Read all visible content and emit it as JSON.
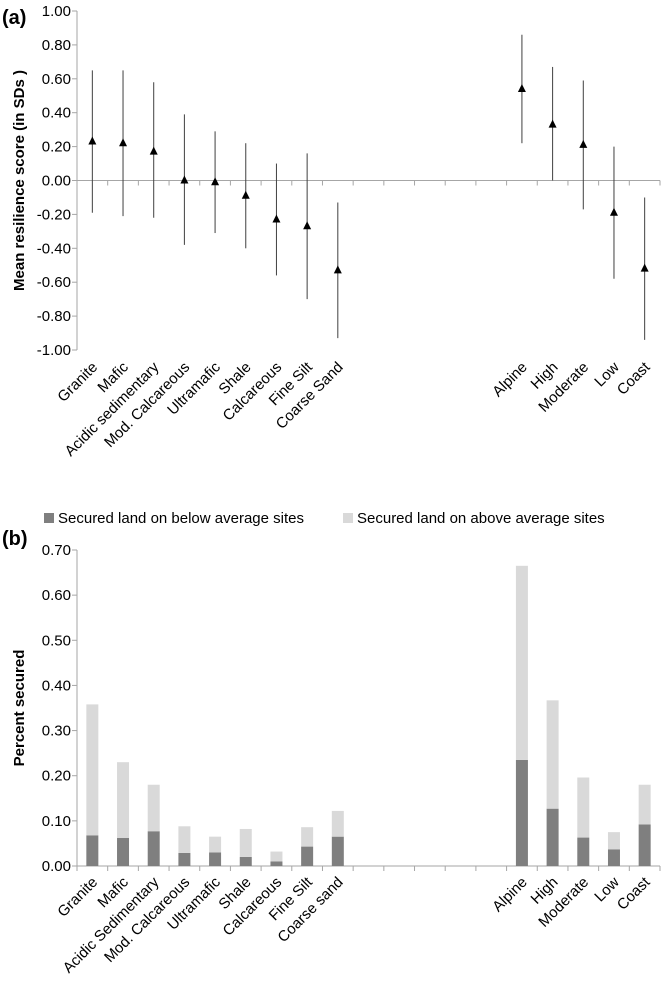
{
  "chart_data": [
    {
      "panel": "(a)",
      "type": "scatter",
      "ylabel": "Mean resilience score (in SDs )",
      "ylim": [
        -1.0,
        1.0
      ],
      "yticks": [
        "-1.00",
        "-0.80",
        "-0.60",
        "-0.40",
        "-0.20",
        "0.00",
        "0.20",
        "0.40",
        "0.60",
        "0.80",
        "1.00"
      ],
      "categories": [
        "Granite",
        "Mafic",
        "Acidic sedimentary",
        "Mod. Calcareous",
        "Ultramafic",
        "Shale",
        "Calcareous",
        "Fine Silt",
        "Coarse Sand",
        "",
        "",
        "",
        "",
        "",
        "Alpine",
        "High",
        "Moderate",
        "Low",
        "Coast"
      ],
      "points": [
        {
          "category": "Granite",
          "mean": 0.23,
          "low": -0.19,
          "high": 0.65
        },
        {
          "category": "Mafic",
          "mean": 0.22,
          "low": -0.21,
          "high": 0.65
        },
        {
          "category": "Acidic sedimentary",
          "mean": 0.17,
          "low": -0.22,
          "high": 0.58
        },
        {
          "category": "Mod. Calcareous",
          "mean": 0.0,
          "low": -0.38,
          "high": 0.39
        },
        {
          "category": "Ultramafic",
          "mean": -0.01,
          "low": -0.31,
          "high": 0.29
        },
        {
          "category": "Shale",
          "mean": -0.09,
          "low": -0.4,
          "high": 0.22
        },
        {
          "category": "Calcareous",
          "mean": -0.23,
          "low": -0.56,
          "high": 0.1
        },
        {
          "category": "Fine Silt",
          "mean": -0.27,
          "low": -0.7,
          "high": 0.16
        },
        {
          "category": "Coarse Sand",
          "mean": -0.53,
          "low": -0.93,
          "high": -0.13
        },
        {
          "category": "Alpine",
          "mean": 0.54,
          "low": 0.22,
          "high": 0.86
        },
        {
          "category": "High",
          "mean": 0.33,
          "low": 0.0,
          "high": 0.67
        },
        {
          "category": "Moderate",
          "mean": 0.21,
          "low": -0.17,
          "high": 0.59
        },
        {
          "category": "Low",
          "mean": -0.19,
          "low": -0.58,
          "high": 0.2
        },
        {
          "category": "Coast",
          "mean": -0.52,
          "low": -0.94,
          "high": -0.1
        }
      ]
    },
    {
      "panel": "(b)",
      "type": "bar",
      "stacked": true,
      "ylabel": "Percent secured",
      "ylim": [
        0.0,
        0.7
      ],
      "yticks": [
        "0.00",
        "0.10",
        "0.20",
        "0.30",
        "0.40",
        "0.50",
        "0.60",
        "0.70"
      ],
      "categories": [
        "Granite",
        "Mafic",
        "Acidic Sedimentary",
        "Mod. Calcareous",
        "Ultramafic",
        "Shale",
        "Calcareous",
        "Fine Silt",
        "Coarse sand",
        "",
        "",
        "",
        "",
        "",
        "Alpine",
        "High",
        "Moderate",
        "Low",
        "Coast"
      ],
      "legend": "top",
      "series": [
        {
          "name": "Secured land on below average sites",
          "color": "#7f7f7f",
          "values": [
            0.068,
            0.062,
            0.077,
            0.029,
            0.03,
            0.02,
            0.01,
            0.043,
            0.065,
            null,
            null,
            null,
            null,
            null,
            0.235,
            0.127,
            0.063,
            0.037,
            0.092
          ]
        },
        {
          "name": "Secured land on above average sites",
          "color": "#d9d9d9",
          "values": [
            0.29,
            0.168,
            0.103,
            0.059,
            0.035,
            0.062,
            0.022,
            0.043,
            0.057,
            null,
            null,
            null,
            null,
            null,
            0.43,
            0.24,
            0.133,
            0.038,
            0.088
          ]
        }
      ]
    }
  ]
}
